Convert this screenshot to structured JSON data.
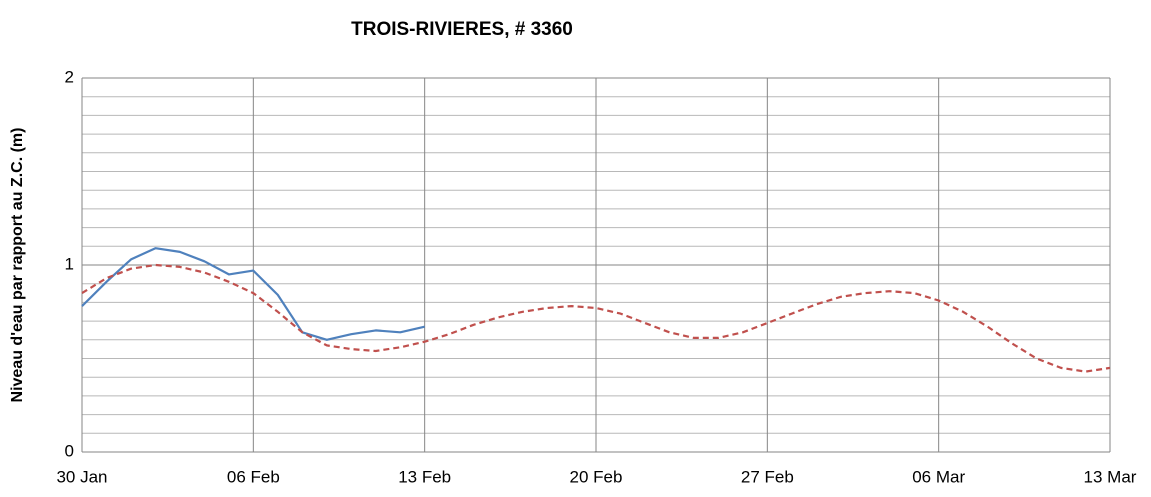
{
  "chart_data": {
    "type": "line",
    "title": "TROIS-RIVIERES, # 3360",
    "y_label": "Niveau d'eau par rapport au Z.C. (m)",
    "x": [
      "30 Jan",
      "31 Jan",
      "01 Feb",
      "02 Feb",
      "03 Feb",
      "04 Feb",
      "05 Feb",
      "06 Feb",
      "07 Feb",
      "08 Feb",
      "09 Feb",
      "10 Feb",
      "11 Feb",
      "12 Feb",
      "13 Feb",
      "14 Feb",
      "15 Feb",
      "16 Feb",
      "17 Feb",
      "18 Feb",
      "19 Feb",
      "20 Feb",
      "21 Feb",
      "22 Feb",
      "23 Feb",
      "24 Feb",
      "25 Feb",
      "26 Feb",
      "27 Feb",
      "28 Feb",
      "01 Mar",
      "02 Mar",
      "03 Mar",
      "04 Mar",
      "05 Mar",
      "06 Mar",
      "07 Mar",
      "08 Mar",
      "09 Mar",
      "10 Mar",
      "11 Mar",
      "12 Mar",
      "13 Mar"
    ],
    "series": [
      {
        "color": "#4f81bd",
        "dash": false,
        "values": [
          0.78,
          0.91,
          1.03,
          1.09,
          1.07,
          1.02,
          0.95,
          0.97,
          0.84,
          0.64,
          0.6,
          0.63,
          0.65,
          0.64,
          0.67,
          null,
          null,
          null,
          null,
          null,
          null,
          null,
          null,
          null,
          null,
          null,
          null,
          null,
          null,
          null,
          null,
          null,
          null,
          null,
          null,
          null,
          null,
          null,
          null,
          null,
          null,
          null,
          null
        ]
      },
      {
        "color": "#c0504d",
        "dash": true,
        "values": [
          0.85,
          0.93,
          0.98,
          1.0,
          0.99,
          0.96,
          0.91,
          0.85,
          0.75,
          0.64,
          0.57,
          0.55,
          0.54,
          0.56,
          0.59,
          0.63,
          0.68,
          0.72,
          0.75,
          0.77,
          0.78,
          0.77,
          0.74,
          0.69,
          0.64,
          0.61,
          0.61,
          0.64,
          0.69,
          0.74,
          0.79,
          0.83,
          0.85,
          0.86,
          0.85,
          0.81,
          0.75,
          0.67,
          0.58,
          0.5,
          0.45,
          0.43,
          0.45
        ]
      }
    ],
    "xlim": [
      "30 Jan",
      "13 Mar"
    ],
    "xticks": [
      "30 Jan",
      "06 Feb",
      "13 Feb",
      "20 Feb",
      "27 Feb",
      "06 Mar",
      "13 Mar"
    ],
    "ylim": [
      0,
      2
    ],
    "yticks": [
      0,
      1,
      2
    ],
    "yminorticks": [
      0.1,
      0.2,
      0.3,
      0.4,
      0.5,
      0.6,
      0.7,
      0.8,
      0.9,
      1.1,
      1.2,
      1.3,
      1.4,
      1.5,
      1.6,
      1.7,
      1.8,
      1.9
    ],
    "grid": true
  }
}
